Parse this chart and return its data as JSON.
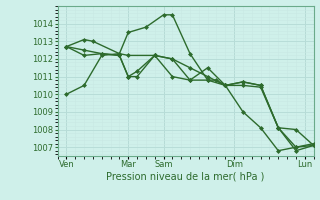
{
  "background_color": "#cff0ea",
  "plot_bg_color": "#cff0ea",
  "grid_major_color": "#b8ddd8",
  "grid_minor_color": "#c8e8e3",
  "line_color": "#2d6b2d",
  "xlabel": "Pression niveau de la mer( hPa )",
  "ylim": [
    1006.5,
    1015.0
  ],
  "xlim": [
    0,
    14.5
  ],
  "yticks": [
    1007,
    1008,
    1009,
    1010,
    1011,
    1012,
    1013,
    1014
  ],
  "xtick_labels": [
    "Ven",
    "Mar",
    "Sam",
    "Dim",
    "Lun"
  ],
  "xtick_positions": [
    0.5,
    4.0,
    6.0,
    10.0,
    14.0
  ],
  "vlines": [
    0.5,
    4.0,
    6.0,
    10.0,
    14.0
  ],
  "lines": [
    {
      "x": [
        0.5,
        1.5,
        2.5,
        3.5,
        4.0,
        5.0,
        6.0,
        6.5,
        7.5,
        8.5,
        9.0,
        9.5,
        10.5,
        11.5,
        12.5,
        13.5,
        14.5
      ],
      "y": [
        1010.0,
        1010.5,
        1012.2,
        1012.3,
        1013.5,
        1013.8,
        1014.5,
        1014.5,
        1012.3,
        1010.8,
        1010.8,
        1010.5,
        1009.0,
        1008.1,
        1006.8,
        1007.0,
        1007.2
      ]
    },
    {
      "x": [
        0.5,
        1.5,
        2.0,
        3.5,
        4.0,
        5.5,
        6.5,
        7.5,
        8.5,
        9.5,
        10.5,
        11.5,
        12.5,
        13.5,
        14.5
      ],
      "y": [
        1012.7,
        1013.1,
        1013.0,
        1012.3,
        1012.2,
        1012.2,
        1012.0,
        1011.5,
        1011.0,
        1010.5,
        1010.5,
        1010.4,
        1008.1,
        1006.8,
        1007.1
      ]
    },
    {
      "x": [
        0.5,
        1.5,
        2.5,
        3.5,
        4.0,
        4.5,
        5.5,
        6.5,
        7.5,
        8.5,
        9.5,
        10.5,
        11.5,
        12.5,
        13.5,
        14.5
      ],
      "y": [
        1012.7,
        1012.5,
        1012.3,
        1012.2,
        1011.0,
        1011.0,
        1012.2,
        1012.0,
        1010.8,
        1011.5,
        1010.5,
        1010.7,
        1010.5,
        1008.1,
        1007.0,
        1007.1
      ]
    },
    {
      "x": [
        0.5,
        1.5,
        2.5,
        3.5,
        4.0,
        4.5,
        5.5,
        6.5,
        7.5,
        8.5,
        9.5,
        10.5,
        11.5,
        12.5,
        13.5,
        14.5
      ],
      "y": [
        1012.7,
        1012.2,
        1012.3,
        1012.2,
        1011.0,
        1011.3,
        1012.2,
        1011.0,
        1010.8,
        1010.8,
        1010.5,
        1010.7,
        1010.5,
        1008.1,
        1008.0,
        1007.1
      ]
    }
  ]
}
